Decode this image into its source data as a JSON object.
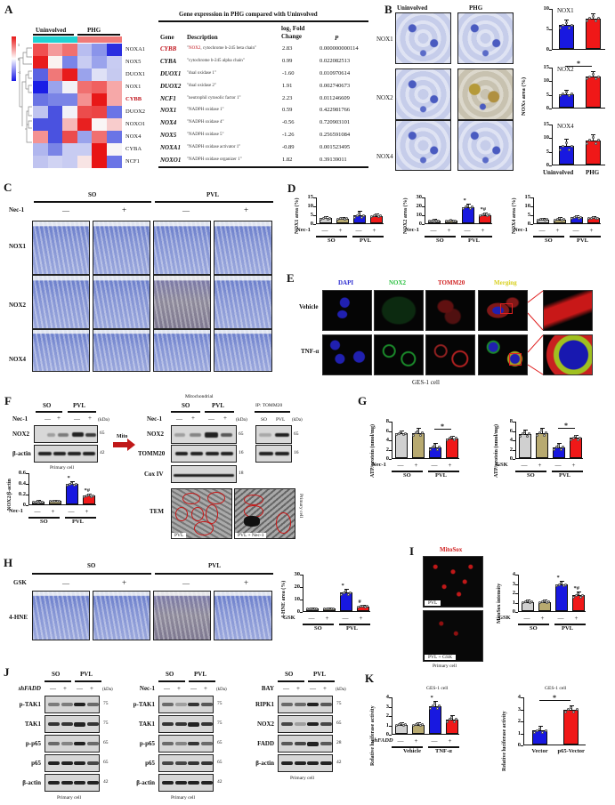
{
  "figure": {
    "panels": [
      "A",
      "B",
      "C",
      "D",
      "E",
      "F",
      "G",
      "H",
      "I",
      "J",
      "K"
    ]
  },
  "panel_A": {
    "label": "A",
    "heatmap": {
      "group_labels": [
        "Uninvolved",
        "PHG"
      ],
      "scale_ticks": [
        "1",
        "0",
        "-1"
      ],
      "rows": [
        "NOXA1",
        "NOX5",
        "DUOX1",
        "NOX1",
        "CYBB",
        "DUOX2",
        "NOXO1",
        "NOX4",
        "CYBA",
        "NCF1"
      ],
      "highlight_row": "CYBB",
      "colors": [
        [
          "#f05050",
          "#f49a9a",
          "#f07070",
          "#b8bdf0",
          "#8a94ea",
          "#2a2ee0"
        ],
        [
          "#e81c1c",
          "#faf3f0",
          "#7a85e8",
          "#c8ccf2",
          "#9aa3ec",
          "#c8ccf2"
        ],
        [
          "#5a62e2",
          "#f07878",
          "#e81c1c",
          "#9aa3ec",
          "#dfe1f6",
          "#c6caf0"
        ],
        [
          "#1a1ee6",
          "#9aa3ec",
          "#f2f2f6",
          "#f07070",
          "#f06060",
          "#f6a8a8"
        ],
        [
          "#6a74e4",
          "#7a84e6",
          "#7a84e6",
          "#f49090",
          "#e81818",
          "#f6a8a8"
        ],
        [
          "#c0c4f0",
          "#4a52e0",
          "#f2f2f8",
          "#ec4c4c",
          "#ec4444",
          "#6a74e6"
        ],
        [
          "#4a52e0",
          "#4a52e0",
          "#f6b8b8",
          "#e82020",
          "#faf6f6",
          "#f8cccc"
        ],
        [
          "#f49292",
          "#4a52e0",
          "#ec4c4c",
          "#9aa3ec",
          "#f07070",
          "#6a74e6"
        ],
        [
          "#b0b6ee",
          "#7a84e6",
          "#c8ccf2",
          "#c8ccf2",
          "#e81414",
          "#f6f4f6"
        ],
        [
          "#c0c4f0",
          "#d0d3f3",
          "#c8ccf2",
          "#f8e4e4",
          "#e81414",
          "#6a74e6"
        ]
      ]
    },
    "table": {
      "title": "Gene expression in PHG compared with Uninvolved",
      "headers": [
        "Gene",
        "Description",
        "log₂ Fold Change",
        "P"
      ],
      "rows": [
        {
          "gene": "CYBB",
          "desc_prefix": "\"",
          "desc_highlight": "NOX2",
          "desc": ", cytochrome b-245 beta chain\"",
          "fc": "2.83",
          "p": "0.000000000114"
        },
        {
          "gene": "CYBA",
          "desc_prefix": "",
          "desc_highlight": "",
          "desc": "\"cytochrome b-245 alpha chain\"",
          "fc": "0.99",
          "p": "0.022082513"
        },
        {
          "gene": "DUOX1",
          "desc_prefix": "",
          "desc_highlight": "",
          "desc": "\"dual oxidase 1\"",
          "fc": "-1.60",
          "p": "0.010970614"
        },
        {
          "gene": "DUOX2",
          "desc_prefix": "",
          "desc_highlight": "",
          "desc": "\"dual oxidase 2\"",
          "fc": "1.91",
          "p": "0.002740673"
        },
        {
          "gene": "NCF1",
          "desc_prefix": "",
          "desc_highlight": "",
          "desc": "\"neutrophil cytosolic factor 1\"",
          "fc": "2.23",
          "p": "0.011246609"
        },
        {
          "gene": "NOX1",
          "desc_prefix": "",
          "desc_highlight": "",
          "desc": "\"NADPH oxidase 1\"",
          "fc": "0.59",
          "p": "0.422981766"
        },
        {
          "gene": "NOX4",
          "desc_prefix": "",
          "desc_highlight": "",
          "desc": "\"NADPH oxidase 4\"",
          "fc": "-0.56",
          "p": "0.720903101"
        },
        {
          "gene": "NOX5",
          "desc_prefix": "",
          "desc_highlight": "",
          "desc": "\"NADPH oxidase 5\"",
          "fc": "-1.26",
          "p": "0.256591084"
        },
        {
          "gene": "NOXA1",
          "desc_prefix": "",
          "desc_highlight": "",
          "desc": "\"NADPH oxidase activator 1\"",
          "fc": "-0.89",
          "p": "0.001523495"
        },
        {
          "gene": "NOXO1",
          "desc_prefix": "",
          "desc_highlight": "",
          "desc": "\"NADPH oxidase organizer 1\"",
          "fc": "1.82",
          "p": "0.39139011"
        }
      ]
    }
  },
  "panel_B": {
    "label": "B",
    "col_labels": [
      "Uninvolved",
      "PHG"
    ],
    "row_labels": [
      "NOX1",
      "NOX2",
      "NOX4"
    ],
    "ylabel": "NOXs area (%)",
    "xlabels": [
      "Uninvolved",
      "PHG"
    ],
    "sig": "*"
  },
  "panel_C": {
    "label": "C",
    "groups": [
      "SO",
      "PVL"
    ],
    "treatment": "Nec-1",
    "signs": [
      "—",
      "+",
      "—",
      "+"
    ],
    "rows": [
      "NOX1",
      "NOX2",
      "NOX4"
    ]
  },
  "panel_D": {
    "label": "D",
    "treatment": "Nec-1",
    "signs": [
      "—",
      "+",
      "—",
      "+"
    ],
    "groups": [
      "SO",
      "PVL"
    ]
  },
  "panel_E": {
    "label": "E",
    "channels": [
      "DAPI",
      "NOX2",
      "TOMM20",
      "Merging"
    ],
    "channel_colors": [
      "#2a2ad0",
      "#2ac040",
      "#d02020",
      "#d8d020"
    ],
    "rows": [
      "Vehicle",
      "TNF-α"
    ],
    "caption": "GES-1 cell"
  },
  "panel_F": {
    "label": "F",
    "left_blot": {
      "groups": [
        "SO",
        "PVL"
      ],
      "treatment": "Nec-1",
      "signs": [
        "—",
        "+",
        "—",
        "+"
      ],
      "kda_label": "(kDa)",
      "rows": [
        {
          "name": "NOX2",
          "kda": "65"
        },
        {
          "name": "β-actin",
          "kda": "42"
        }
      ],
      "caption": "Primary cell"
    },
    "arrow_label": "Mito",
    "mito_blot": {
      "title": "Mitochondrial",
      "groups": [
        "SO",
        "PVL"
      ],
      "treatment": "Nec-1",
      "signs": [
        "—",
        "+",
        "—",
        "+"
      ],
      "kda_label": "(kDa)",
      "rows": [
        {
          "name": "NOX2",
          "kda": "65"
        },
        {
          "name": "TOMM20",
          "kda": "16"
        },
        {
          "name": "Cox IV",
          "kda": "18"
        }
      ]
    },
    "ip_blot": {
      "title": "IP: TOMM20",
      "lanes": [
        "SO",
        "PVL"
      ],
      "kda_label": "(kDa)",
      "kdas": [
        "65",
        "16"
      ]
    },
    "tem": {
      "label": "TEM",
      "images": [
        "PVL",
        "PVL + Nec-1"
      ],
      "side_caption": "Primary cell"
    }
  },
  "panel_G": {
    "label": "G",
    "left_treatment": "Nec-1",
    "right_treatment": "GSK",
    "signs": [
      "—",
      "+",
      "—",
      "+"
    ],
    "groups": [
      "SO",
      "PVL"
    ]
  },
  "panel_H": {
    "label": "H",
    "groups": [
      "SO",
      "PVL"
    ],
    "treatment": "GSK",
    "signs": [
      "—",
      "+",
      "—",
      "+"
    ],
    "row": "4-HNE"
  },
  "panel_I": {
    "label": "I",
    "title": "MitoSox",
    "images": [
      "PVL",
      "PVL + GSK"
    ],
    "caption": "Primary cell",
    "treatment": "GSK",
    "signs": [
      "—",
      "+",
      "—",
      "+"
    ],
    "groups": [
      "SO",
      "PVL"
    ]
  },
  "panel_J": {
    "label": "J",
    "blots": [
      {
        "treatment": "shFADD",
        "groups": [
          "SO",
          "PVL"
        ],
        "signs": [
          "—",
          "+",
          "—",
          "+"
        ],
        "kda_label": "(kDa)",
        "rows": [
          {
            "name": "p-TAK1",
            "kda": "75"
          },
          {
            "name": "TAK1",
            "kda": "75"
          },
          {
            "name": "p-p65",
            "kda": "65"
          },
          {
            "name": "p65",
            "kda": "65"
          },
          {
            "name": "β-actin",
            "kda": "42"
          }
        ],
        "caption": "Primary cell"
      },
      {
        "treatment": "Nec-1",
        "groups": [
          "SO",
          "PVL"
        ],
        "signs": [
          "—",
          "+",
          "—",
          "+"
        ],
        "kda_label": "(kDa)",
        "rows": [
          {
            "name": "p-TAK1",
            "kda": "75"
          },
          {
            "name": "TAK1",
            "kda": "75"
          },
          {
            "name": "p-p65",
            "kda": "65"
          },
          {
            "name": "p65",
            "kda": "65"
          },
          {
            "name": "β-actin",
            "kda": "42"
          }
        ],
        "caption": "Primary cell"
      },
      {
        "treatment": "BAY",
        "groups": [
          "SO",
          "PVL"
        ],
        "signs": [
          "—",
          "+",
          "—",
          "+"
        ],
        "kda_label": "(kDa)",
        "rows": [
          {
            "name": "RIPK1",
            "kda": "75"
          },
          {
            "name": "NOX2",
            "kda": "65"
          },
          {
            "name": "FADD",
            "kda": "28"
          },
          {
            "name": "β-actin",
            "kda": "42"
          }
        ],
        "caption": "Primary cell"
      }
    ]
  },
  "panel_K": {
    "label": "K",
    "left": {
      "title": "GES-1 cell",
      "treatment": "shFADD",
      "signs": [
        "—",
        "+",
        "—",
        "+"
      ],
      "groups": [
        "Vehicle",
        "TNF-α"
      ]
    },
    "right": {
      "title": "GES-1 cell",
      "xlabels": [
        "Vector",
        "p65-Vector"
      ],
      "sig": "*"
    }
  },
  "colors": {
    "gray": "#d0d0d0",
    "khaki": "#b8aa70",
    "blue": "#1818e0",
    "red": "#f01818",
    "highlight_red": "#c0141c"
  },
  "chart_data": [
    {
      "id": "B-NOX1",
      "type": "bar",
      "title": "NOX1",
      "categories": [
        "Uninvolved",
        "PHG"
      ],
      "values": [
        5.8,
        7.4
      ],
      "errors": [
        1.2,
        1.0
      ],
      "ylabel": "NOXs area (%)",
      "ylim": [
        0,
        10
      ],
      "yticks": [
        0,
        5,
        10
      ],
      "colors": [
        "#1818e0",
        "#f01818"
      ]
    },
    {
      "id": "B-NOX2",
      "type": "bar",
      "title": "NOX2",
      "categories": [
        "Uninvolved",
        "PHG"
      ],
      "values": [
        5.0,
        11.4
      ],
      "errors": [
        1.2,
        1.5
      ],
      "ylabel": "NOXs area (%)",
      "ylim": [
        0,
        15
      ],
      "yticks": [
        0,
        5,
        10,
        15
      ],
      "annotations": [
        "* between Uninvolved and PHG"
      ],
      "colors": [
        "#1818e0",
        "#f01818"
      ]
    },
    {
      "id": "B-NOX4",
      "type": "bar",
      "title": "NOX4",
      "categories": [
        "Uninvolved",
        "PHG"
      ],
      "values": [
        6.8,
        8.9
      ],
      "errors": [
        2.2,
        1.8
      ],
      "ylabel": "NOXs area (%)",
      "ylim": [
        0,
        15
      ],
      "yticks": [
        0,
        5,
        10,
        15
      ],
      "colors": [
        "#1818e0",
        "#f01818"
      ]
    },
    {
      "id": "D-NOX1",
      "type": "bar",
      "categories": [
        "SO -",
        "SO +",
        "PVL -",
        "PVL +"
      ],
      "values": [
        2.8,
        2.7,
        4.5,
        4.1
      ],
      "errors": [
        0.5,
        0.4,
        1.8,
        0.9
      ],
      "ylabel": "NOX1 area (%)",
      "ylim": [
        0,
        15
      ],
      "yticks": [
        0,
        5,
        10,
        15
      ],
      "colors": [
        "#d0d0d0",
        "#b8aa70",
        "#1818e0",
        "#f01818"
      ]
    },
    {
      "id": "D-NOX2",
      "type": "bar",
      "categories": [
        "SO -",
        "SO +",
        "PVL -",
        "PVL +"
      ],
      "values": [
        3.0,
        2.8,
        18.5,
        9.3
      ],
      "errors": [
        0.6,
        0.5,
        2.5,
        1.3
      ],
      "ylabel": "NOX2 area (%)",
      "ylim": [
        0,
        30
      ],
      "yticks": [
        0,
        10,
        20,
        30
      ],
      "annotations": [
        "* over PVL -",
        "*# over PVL +"
      ],
      "colors": [
        "#d0d0d0",
        "#b8aa70",
        "#1818e0",
        "#f01818"
      ]
    },
    {
      "id": "D-NOX4",
      "type": "bar",
      "categories": [
        "SO -",
        "SO +",
        "PVL -",
        "PVL +"
      ],
      "values": [
        2.2,
        2.2,
        3.3,
        3.0
      ],
      "errors": [
        0.4,
        0.6,
        0.7,
        0.7
      ],
      "ylabel": "NOX4 area (%)",
      "ylim": [
        0,
        15
      ],
      "yticks": [
        0,
        5,
        10,
        15
      ],
      "colors": [
        "#d0d0d0",
        "#b8aa70",
        "#1818e0",
        "#f01818"
      ]
    },
    {
      "id": "F-quant",
      "type": "bar",
      "categories": [
        "SO -",
        "SO +",
        "PVL -",
        "PVL +"
      ],
      "values": [
        0.05,
        0.06,
        0.38,
        0.16
      ],
      "errors": [
        0.01,
        0.01,
        0.03,
        0.02
      ],
      "ylabel": "NOX2/β-actin",
      "ylim": [
        0,
        0.6
      ],
      "yticks": [
        0.0,
        0.2,
        0.4,
        0.6
      ],
      "annotations": [
        "* over PVL -",
        "*# over PVL +"
      ],
      "colors": [
        "#d0d0d0",
        "#b8aa70",
        "#1818e0",
        "#f01818"
      ]
    },
    {
      "id": "G-Nec1",
      "type": "bar",
      "categories": [
        "SO -",
        "SO +",
        "PVL -",
        "PVL +"
      ],
      "values": [
        5.3,
        5.4,
        2.3,
        4.2
      ],
      "errors": [
        0.5,
        0.8,
        0.7,
        0.4
      ],
      "ylabel": "ATP/protein (nmol/mg)",
      "ylim": [
        0,
        8
      ],
      "yticks": [
        0,
        2,
        4,
        6,
        8
      ],
      "annotations": [
        "* between PVL - and PVL +"
      ],
      "colors": [
        "#d0d0d0",
        "#b8aa70",
        "#1818e0",
        "#f01818"
      ]
    },
    {
      "id": "G-GSK",
      "type": "bar",
      "categories": [
        "SO -",
        "SO +",
        "PVL -",
        "PVL +"
      ],
      "values": [
        5.2,
        5.4,
        2.3,
        4.3
      ],
      "errors": [
        0.8,
        0.9,
        0.7,
        0.5
      ],
      "ylabel": "ATP/protein (nmol/mg)",
      "ylim": [
        0,
        8
      ],
      "yticks": [
        0,
        2,
        4,
        6,
        8
      ],
      "annotations": [
        "* between PVL - and PVL +"
      ],
      "colors": [
        "#d0d0d0",
        "#b8aa70",
        "#1818e0",
        "#f01818"
      ]
    },
    {
      "id": "H-quant",
      "type": "bar",
      "categories": [
        "SO -",
        "SO +",
        "PVL -",
        "PVL +"
      ],
      "values": [
        1.8,
        1.8,
        14.8,
        3.6
      ],
      "errors": [
        0.4,
        0.4,
        2.6,
        0.8
      ],
      "ylabel": "4-HNE area (%)",
      "ylim": [
        0,
        30
      ],
      "yticks": [
        0,
        10,
        20,
        30
      ],
      "annotations": [
        "* over PVL -",
        "# over PVL +"
      ],
      "colors": [
        "#d0d0d0",
        "#b8aa70",
        "#1818e0",
        "#f01818"
      ]
    },
    {
      "id": "I-quant",
      "type": "bar",
      "categories": [
        "SO -",
        "SO +",
        "PVL -",
        "PVL +"
      ],
      "values": [
        1.0,
        1.0,
        2.85,
        1.7
      ],
      "errors": [
        0.1,
        0.1,
        0.3,
        0.3
      ],
      "ylabel": "MitoSox intensity",
      "ylim": [
        0,
        4
      ],
      "yticks": [
        0,
        1,
        2,
        3,
        4
      ],
      "annotations": [
        "* over PVL -",
        "*# over PVL +"
      ],
      "colors": [
        "#d0d0d0",
        "#b8aa70",
        "#1818e0",
        "#f01818"
      ]
    },
    {
      "id": "K-shFADD",
      "type": "bar",
      "title": "GES-1 cell",
      "categories": [
        "Vehicle -",
        "Vehicle +",
        "TNF-α -",
        "TNF-α +"
      ],
      "values": [
        1.0,
        1.0,
        3.0,
        1.55
      ],
      "errors": [
        0.1,
        0.15,
        0.45,
        0.4
      ],
      "ylabel": "Relative luciferase activity",
      "ylim": [
        0,
        4
      ],
      "yticks": [
        0,
        1,
        2,
        3,
        4
      ],
      "annotations": [
        "* over TNF-α -"
      ],
      "colors": [
        "#d0d0d0",
        "#b8aa70",
        "#1818e0",
        "#f01818"
      ]
    },
    {
      "id": "K-p65",
      "type": "bar",
      "title": "GES-1 cell",
      "categories": [
        "Vector",
        "p65-Vector"
      ],
      "values": [
        1.15,
        2.9
      ],
      "errors": [
        0.3,
        0.3
      ],
      "ylabel": "Relative luciferase activity",
      "ylim": [
        0,
        4
      ],
      "yticks": [
        0,
        1,
        2,
        3,
        4
      ],
      "annotations": [
        "* between Vector and p65-Vector"
      ],
      "colors": [
        "#1818e0",
        "#f01818"
      ]
    }
  ]
}
